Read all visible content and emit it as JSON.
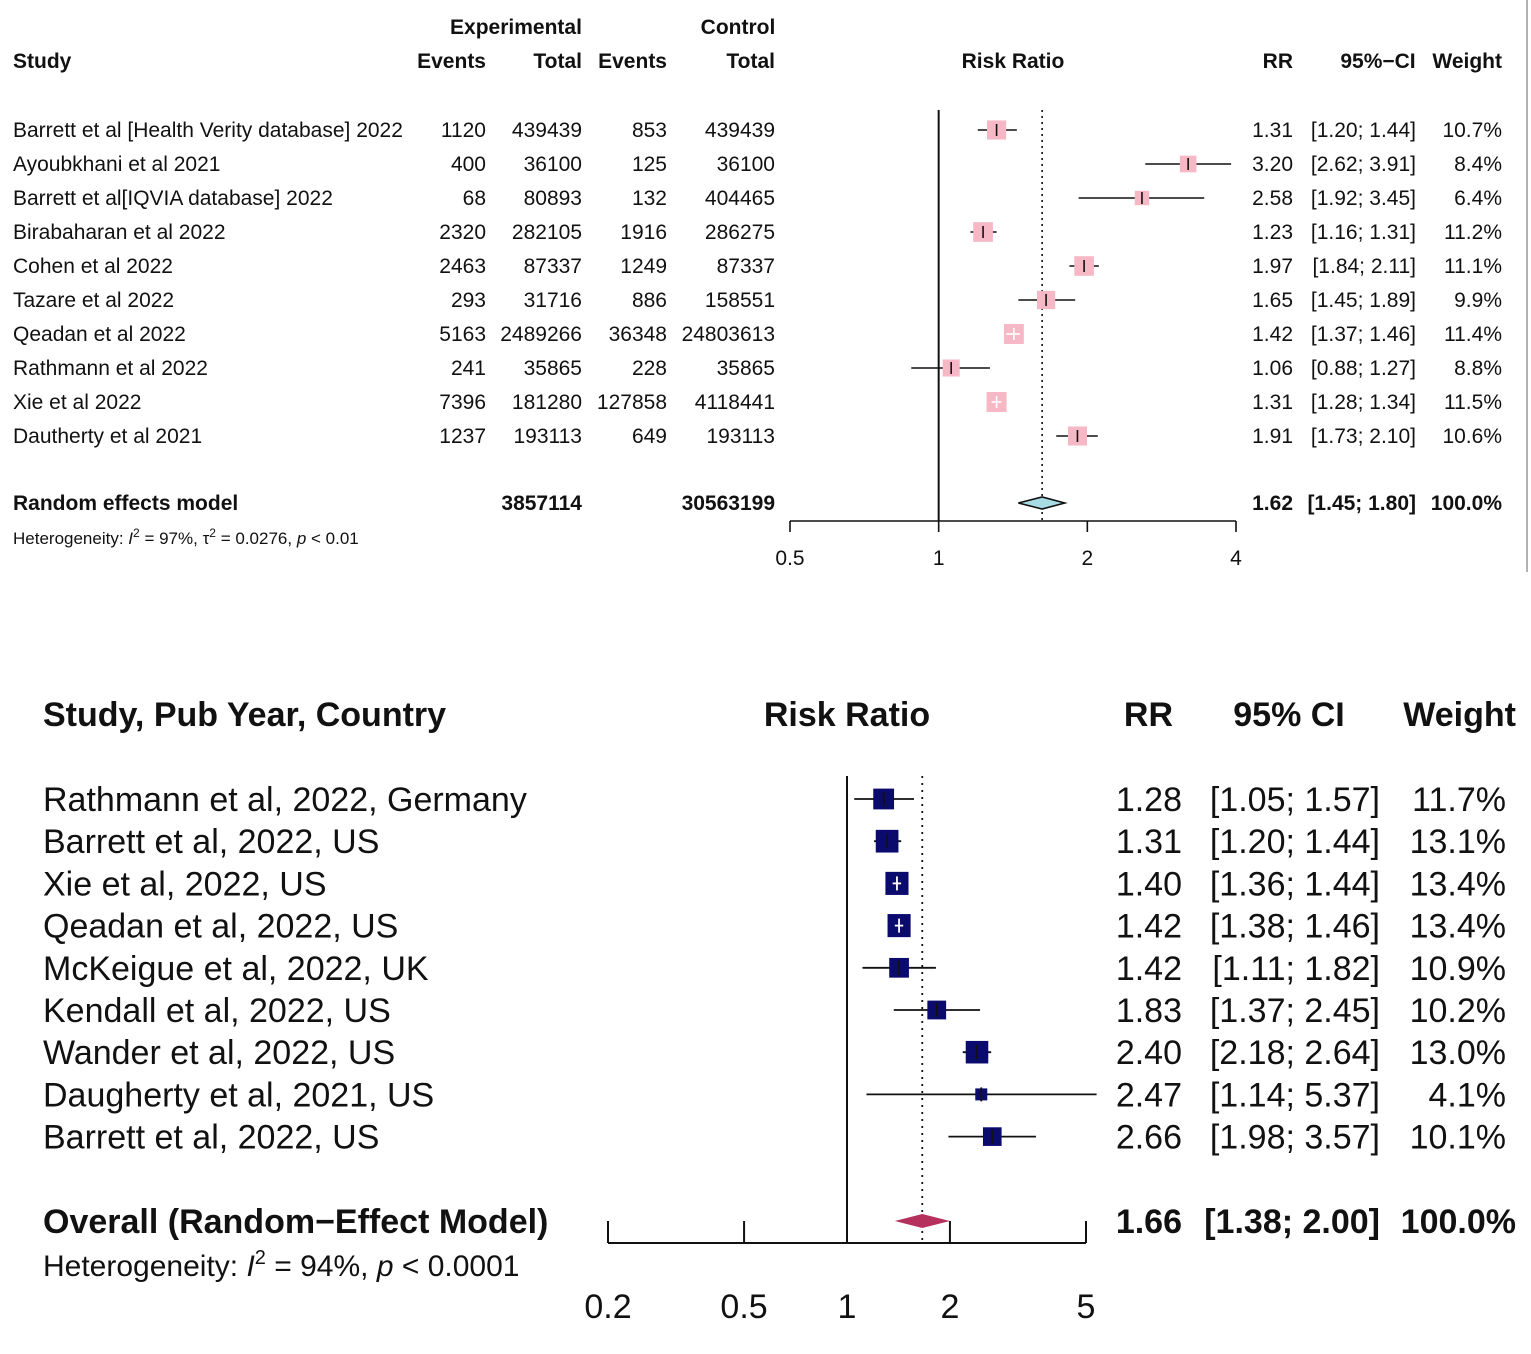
{
  "chart_data": [
    {
      "type": "forest",
      "scale": "log",
      "header": {
        "study": "Study",
        "experimental": "Experimental",
        "control": "Control",
        "events": "Events",
        "total": "Total",
        "risk_ratio": "Risk Ratio",
        "rr": "RR",
        "ci": "95%−CI",
        "weight": "Weight"
      },
      "reference_value": 1,
      "pooled_value": 1.62,
      "xlim": [
        0.5,
        4
      ],
      "xticks": [
        {
          "value": 0.5,
          "label": "0.5"
        },
        {
          "value": 1,
          "label": "1"
        },
        {
          "value": 2,
          "label": "2"
        },
        {
          "value": 4,
          "label": "4"
        }
      ],
      "colors": {
        "box": "#f7b8c6",
        "line": "#111111",
        "diamond": "#a8dce4"
      },
      "studies": [
        {
          "label": "Barrett et al [Health Verity database] 2022",
          "exp_events": "1120",
          "exp_total": "439439",
          "ctrl_events": "853",
          "ctrl_total": "439439",
          "rr": 1.31,
          "lo": 1.2,
          "hi": 1.44,
          "rr_text": "1.31",
          "ci_text": "[1.20; 1.44]",
          "weight_text": "10.7%",
          "weight": 10.7
        },
        {
          "label": "Ayoubkhani et al  2021",
          "exp_events": "400",
          "exp_total": "36100",
          "ctrl_events": "125",
          "ctrl_total": "36100",
          "rr": 3.2,
          "lo": 2.62,
          "hi": 3.91,
          "rr_text": "3.20",
          "ci_text": "[2.62; 3.91]",
          "weight_text": "8.4%",
          "weight": 8.4
        },
        {
          "label": "Barrett et al[IQVIA database] 2022",
          "exp_events": "68",
          "exp_total": "80893",
          "ctrl_events": "132",
          "ctrl_total": "404465",
          "rr": 2.58,
          "lo": 1.92,
          "hi": 3.45,
          "rr_text": "2.58",
          "ci_text": "[1.92; 3.45]",
          "weight_text": "6.4%",
          "weight": 6.4
        },
        {
          "label": "Birabaharan et al 2022",
          "exp_events": "2320",
          "exp_total": "282105",
          "ctrl_events": "1916",
          "ctrl_total": "286275",
          "rr": 1.23,
          "lo": 1.16,
          "hi": 1.31,
          "rr_text": "1.23",
          "ci_text": "[1.16; 1.31]",
          "weight_text": "11.2%",
          "weight": 11.2
        },
        {
          "label": "Cohen et al 2022",
          "exp_events": "2463",
          "exp_total": "87337",
          "ctrl_events": "1249",
          "ctrl_total": "87337",
          "rr": 1.97,
          "lo": 1.84,
          "hi": 2.11,
          "rr_text": "1.97",
          "ci_text": "[1.84; 2.11]",
          "weight_text": "11.1%",
          "weight": 11.1
        },
        {
          "label": "Tazare et al 2022",
          "exp_events": "293",
          "exp_total": "31716",
          "ctrl_events": "886",
          "ctrl_total": "158551",
          "rr": 1.65,
          "lo": 1.45,
          "hi": 1.89,
          "rr_text": "1.65",
          "ci_text": "[1.45; 1.89]",
          "weight_text": "9.9%",
          "weight": 9.9
        },
        {
          "label": "Qeadan et al 2022",
          "exp_events": "5163",
          "exp_total": "2489266",
          "ctrl_events": "36348",
          "ctrl_total": "24803613",
          "rr": 1.42,
          "lo": 1.37,
          "hi": 1.46,
          "rr_text": "1.42",
          "ci_text": "[1.37; 1.46]",
          "weight_text": "11.4%",
          "weight": 11.4
        },
        {
          "label": "Rathmann et al 2022",
          "exp_events": "241",
          "exp_total": "35865",
          "ctrl_events": "228",
          "ctrl_total": "35865",
          "rr": 1.06,
          "lo": 0.88,
          "hi": 1.27,
          "rr_text": "1.06",
          "ci_text": "[0.88; 1.27]",
          "weight_text": "8.8%",
          "weight": 8.8
        },
        {
          "label": "Xie et al 2022",
          "exp_events": "7396",
          "exp_total": "181280",
          "ctrl_events": "127858",
          "ctrl_total": "4118441",
          "rr": 1.31,
          "lo": 1.28,
          "hi": 1.34,
          "rr_text": "1.31",
          "ci_text": "[1.28; 1.34]",
          "weight_text": "11.5%",
          "weight": 11.5
        },
        {
          "label": "Dautherty et al 2021",
          "exp_events": "1237",
          "exp_total": "193113",
          "ctrl_events": "649",
          "ctrl_total": "193113",
          "rr": 1.91,
          "lo": 1.73,
          "hi": 2.1,
          "rr_text": "1.91",
          "ci_text": "[1.73; 2.10]",
          "weight_text": "10.6%",
          "weight": 10.6
        }
      ],
      "summary": {
        "label": "Random effects model",
        "exp_total": "3857114",
        "ctrl_total": "30563199",
        "rr": 1.62,
        "lo": 1.45,
        "hi": 1.8,
        "rr_text": "1.62",
        "ci_text": "[1.45; 1.80]",
        "weight_text": "100.0%"
      },
      "heterogeneity": {
        "prefix": "Heterogeneity: ",
        "i2_symbol": "I",
        "i2_rest": " = 97%, ",
        "tau_symbol": "τ",
        "tau_rest": " = 0.0276, ",
        "p_symbol": "p",
        "p_rest": " < 0.01"
      }
    },
    {
      "type": "forest",
      "scale": "log",
      "header": {
        "study": "Study, Pub Year, Country",
        "risk_ratio": "Risk Ratio",
        "rr": "RR",
        "ci": "95% CI",
        "weight": "Weight"
      },
      "reference_value": 1,
      "pooled_value": 1.66,
      "xlim": [
        0.2,
        5
      ],
      "xticks": [
        {
          "value": 0.2,
          "label": "0.2"
        },
        {
          "value": 0.5,
          "label": "0.5"
        },
        {
          "value": 1,
          "label": "1"
        },
        {
          "value": 2,
          "label": "2"
        },
        {
          "value": 5,
          "label": "5"
        }
      ],
      "colors": {
        "box": "#0b0b6e",
        "line": "#111111",
        "diamond": "#b5305c"
      },
      "studies": [
        {
          "label": "Rathmann et al, 2022, Germany",
          "rr": 1.28,
          "lo": 1.05,
          "hi": 1.57,
          "rr_text": "1.28",
          "ci_text": "[1.05; 1.57]",
          "weight_text": "11.7%",
          "weight": 11.7
        },
        {
          "label": "Barrett et al, 2022, US",
          "rr": 1.31,
          "lo": 1.2,
          "hi": 1.44,
          "rr_text": "1.31",
          "ci_text": "[1.20; 1.44]",
          "weight_text": "13.1%",
          "weight": 13.1
        },
        {
          "label": "Xie et al, 2022, US",
          "rr": 1.4,
          "lo": 1.36,
          "hi": 1.44,
          "rr_text": "1.40",
          "ci_text": "[1.36; 1.44]",
          "weight_text": "13.4%",
          "weight": 13.4
        },
        {
          "label": "Qeadan et al, 2022, US",
          "rr": 1.42,
          "lo": 1.38,
          "hi": 1.46,
          "rr_text": "1.42",
          "ci_text": "[1.38; 1.46]",
          "weight_text": "13.4%",
          "weight": 13.4
        },
        {
          "label": "McKeigue et al, 2022, UK",
          "rr": 1.42,
          "lo": 1.11,
          "hi": 1.82,
          "rr_text": "1.42",
          "ci_text": "[1.11; 1.82]",
          "weight_text": "10.9%",
          "weight": 10.9
        },
        {
          "label": "Kendall et al, 2022, US",
          "rr": 1.83,
          "lo": 1.37,
          "hi": 2.45,
          "rr_text": "1.83",
          "ci_text": "[1.37; 2.45]",
          "weight_text": "10.2%",
          "weight": 10.2
        },
        {
          "label": "Wander et al, 2022, US",
          "rr": 2.4,
          "lo": 2.18,
          "hi": 2.64,
          "rr_text": "2.40",
          "ci_text": "[2.18; 2.64]",
          "weight_text": "13.0%",
          "weight": 13.0
        },
        {
          "label": "Daugherty et al, 2021, US",
          "rr": 2.47,
          "lo": 1.14,
          "hi": 5.37,
          "rr_text": "2.47",
          "ci_text": "[1.14; 5.37]",
          "weight_text": "4.1%",
          "weight": 4.1
        },
        {
          "label": "Barrett et al, 2022, US",
          "rr": 2.66,
          "lo": 1.98,
          "hi": 3.57,
          "rr_text": "2.66",
          "ci_text": "[1.98; 3.57]",
          "weight_text": "10.1%",
          "weight": 10.1
        }
      ],
      "summary": {
        "label": "Overall (Random−Effect Model)",
        "rr": 1.66,
        "lo": 1.38,
        "hi": 2.0,
        "rr_text": "1.66",
        "ci_text": "[1.38; 2.00]",
        "weight_text": "100.0%"
      },
      "heterogeneity": {
        "prefix": "Heterogeneity: ",
        "i2_symbol": "I",
        "i2_rest": " = 94%, ",
        "p_symbol": "p",
        "p_rest": " < 0.0001"
      }
    }
  ]
}
